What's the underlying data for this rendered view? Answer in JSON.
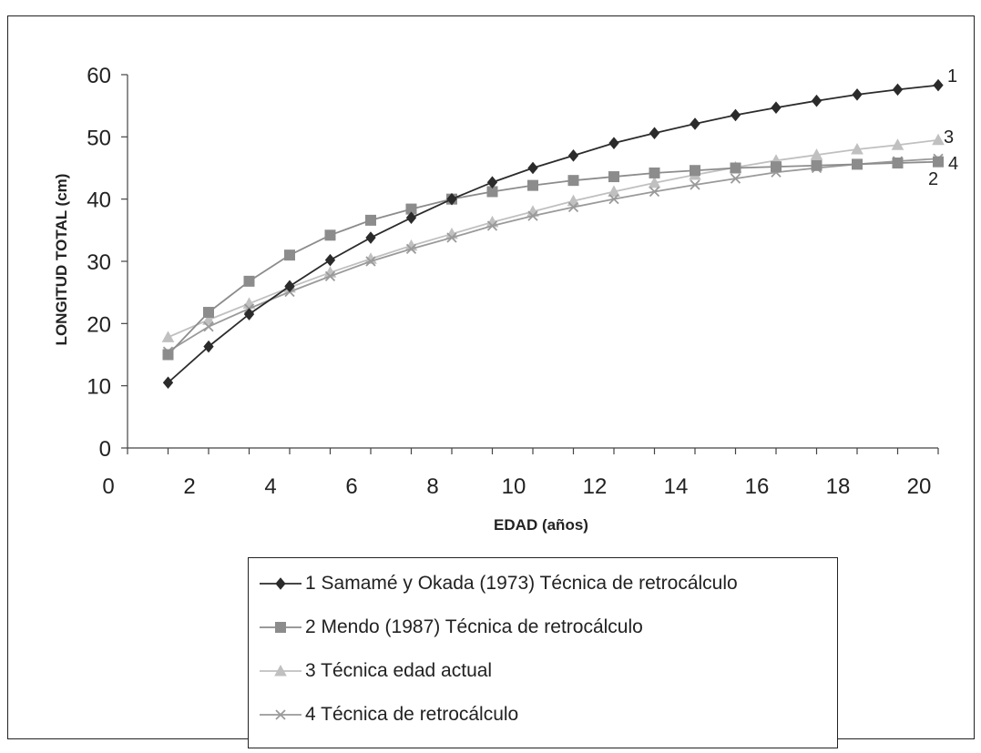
{
  "chart_data": {
    "type": "line",
    "title": "",
    "xlabel": "EDAD (años)",
    "ylabel": "LONGITUD TOTAL (cm)",
    "xlim": [
      0,
      20
    ],
    "ylim": [
      0,
      60
    ],
    "x_ticks": [
      "0",
      "2",
      "4",
      "6",
      "8",
      "10",
      "12",
      "14",
      "16",
      "18",
      "20"
    ],
    "y_ticks": [
      "0",
      "10",
      "20",
      "30",
      "40",
      "50",
      "60"
    ],
    "grid": false,
    "legend_position": "bottom",
    "x": [
      1,
      2,
      3,
      4,
      5,
      6,
      7,
      8,
      9,
      10,
      11,
      12,
      13,
      14,
      15,
      16,
      17,
      18,
      19,
      20
    ],
    "series": [
      {
        "name": "1 Samamé y Okada (1973) Técnica de retrocálculo",
        "end_label": "1",
        "marker": "diamond",
        "color": "#2b2b2b",
        "values": [
          10.5,
          16.3,
          21.5,
          26.0,
          30.2,
          33.8,
          37.0,
          40.0,
          42.7,
          45.0,
          47.0,
          49.0,
          50.6,
          52.1,
          53.5,
          54.7,
          55.8,
          56.8,
          57.6,
          58.3
        ]
      },
      {
        "name": "2 Mendo (1987) Técnica de retrocálculo",
        "end_label": "2",
        "marker": "square",
        "color": "#8c8c8c",
        "values": [
          15.0,
          21.8,
          26.8,
          31.0,
          34.2,
          36.6,
          38.4,
          40.0,
          41.2,
          42.2,
          43.0,
          43.6,
          44.2,
          44.6,
          45.0,
          45.2,
          45.4,
          45.6,
          45.8,
          46.0
        ]
      },
      {
        "name": "3 Técnica edad actual",
        "end_label": "3",
        "marker": "triangle",
        "color": "#c0c0c0",
        "values": [
          17.8,
          20.6,
          23.2,
          25.8,
          28.2,
          30.4,
          32.5,
          34.4,
          36.3,
          38.0,
          39.7,
          41.2,
          42.6,
          43.9,
          45.1,
          46.2,
          47.1,
          48.0,
          48.7,
          49.5
        ]
      },
      {
        "name": "4 Técnica de retrocálculo",
        "end_label": "4",
        "marker": "x",
        "color": "#9a9a9a",
        "values": [
          15.5,
          19.5,
          22.4,
          25.1,
          27.6,
          30.0,
          32.0,
          33.8,
          35.7,
          37.3,
          38.7,
          40.0,
          41.2,
          42.3,
          43.3,
          44.3,
          45.0,
          45.6,
          46.1,
          46.5
        ]
      }
    ]
  }
}
